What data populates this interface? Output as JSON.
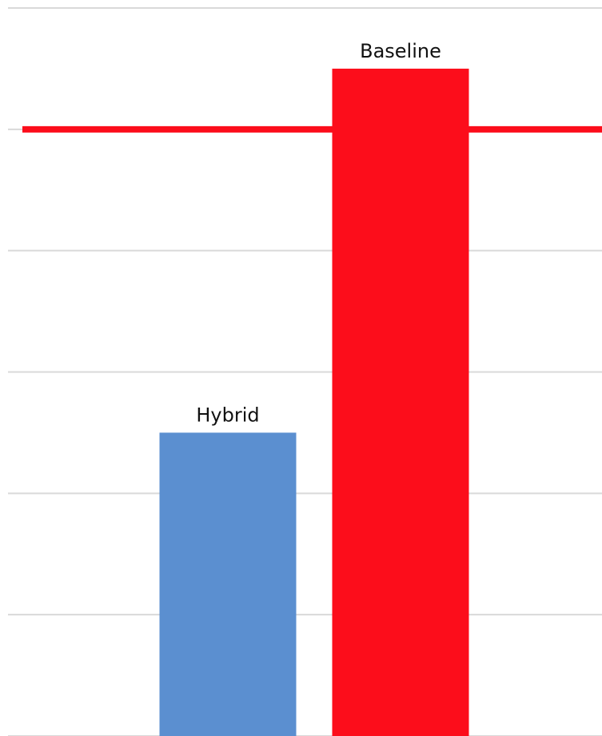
{
  "chart_data": {
    "type": "bar",
    "categories": [
      "Hybrid",
      "Baseline"
    ],
    "values": [
      2.5,
      5.5
    ],
    "colors": [
      "#5b8fd0",
      "#fc0d1b"
    ],
    "ylim": [
      0,
      6
    ],
    "yticks": [
      0,
      1,
      2,
      3,
      4,
      5,
      6
    ],
    "grid": true,
    "reference_line": {
      "value": 5,
      "color": "#fc0d1b"
    }
  }
}
